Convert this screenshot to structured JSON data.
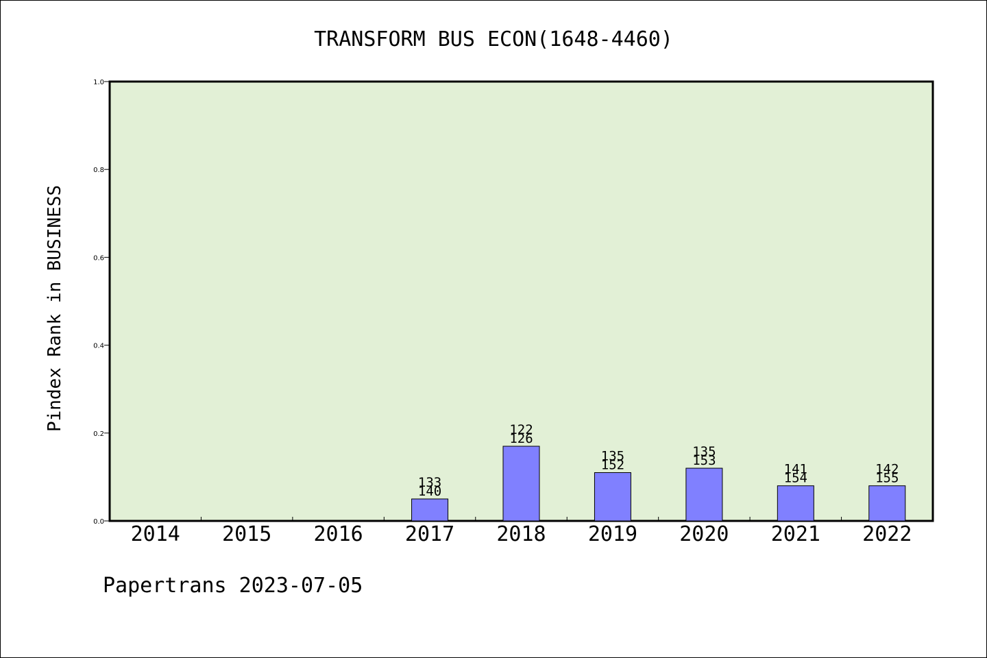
{
  "chart_data": {
    "type": "bar",
    "title": "TRANSFORM BUS ECON(1648-4460)",
    "ylabel": "Pindex Rank in BUSINESS",
    "xlabel": "",
    "footer": "Papertrans 2023-07-05",
    "ylim": [
      0,
      1.0
    ],
    "yticks": [
      "0.0",
      "0.2",
      "0.4",
      "0.6",
      "0.8",
      "1.0"
    ],
    "categories": [
      "2014",
      "2015",
      "2016",
      "2017",
      "2018",
      "2019",
      "2020",
      "2021",
      "2022"
    ],
    "values": [
      0,
      0,
      0,
      0.05,
      0.17,
      0.11,
      0.12,
      0.08,
      0.08
    ],
    "labels_top": [
      "",
      "",
      "",
      "133",
      "122",
      "135",
      "135",
      "141",
      "142"
    ],
    "labels_bottom": [
      "",
      "",
      "",
      "140",
      "126",
      "152",
      "153",
      "154",
      "155"
    ],
    "grid": false,
    "colors": {
      "plot_bg": "#e2f0d6",
      "bar_fill": "#8080ff",
      "bar_stroke": "#000000",
      "axis": "#000000"
    }
  }
}
